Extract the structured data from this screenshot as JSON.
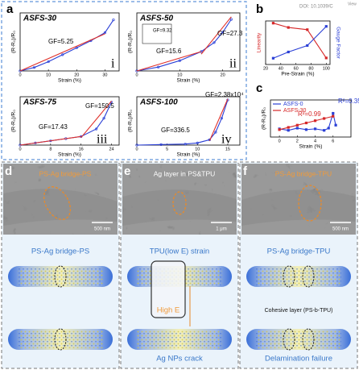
{
  "panel_labels": [
    "a",
    "b",
    "c"
  ],
  "watermark": [
    "DOI: 10.1039/C",
    "View"
  ],
  "chart_data": [
    {
      "type": "line",
      "title": "ASFS-30",
      "xlabel": "Strain (%)",
      "ylabel": "(R-R₀)/R₀",
      "xlim": [
        0,
        35
      ],
      "xticks": [
        0,
        10,
        20,
        30
      ],
      "ylim": [
        0,
        2.5
      ],
      "annotations": [
        "GF=5.25",
        "i"
      ],
      "series": [
        {
          "color": "#2a3fd6",
          "x": [
            0,
            5,
            10,
            15,
            20,
            25,
            30,
            33
          ],
          "values": [
            0,
            0.15,
            0.4,
            0.7,
            1.0,
            1.3,
            1.65,
            2.2
          ]
        },
        {
          "color": "#e0302a",
          "x": [
            0,
            30
          ],
          "values": [
            0,
            1.6
          ]
        }
      ]
    },
    {
      "type": "line",
      "title": "ASFS-50",
      "xlabel": "Strain (%)",
      "ylabel": "(R-R₀)/R₀",
      "xlim": [
        0,
        24
      ],
      "xticks": [
        0,
        10,
        20
      ],
      "ylim": [
        0,
        4.5
      ],
      "annotations": [
        "GF=9.32",
        "GF=15.6",
        "GF=27.3",
        "ii"
      ],
      "series": [
        {
          "color": "#2a3fd6",
          "x": [
            0,
            5,
            10,
            15,
            18,
            20,
            22
          ],
          "values": [
            0,
            0.3,
            0.8,
            1.5,
            2.2,
            3.0,
            4.0
          ]
        },
        {
          "color": "#e0302a",
          "x": [
            0,
            15
          ],
          "values": [
            0,
            1.5
          ]
        },
        {
          "color": "#e0302a",
          "x": [
            15,
            22
          ],
          "values": [
            1.3,
            4.2
          ]
        }
      ]
    },
    {
      "type": "line",
      "title": "ASFS-75",
      "xlabel": "Strain (%)",
      "ylabel": "(R-R₀)/R₀",
      "xlim": [
        0,
        26
      ],
      "xticks": [
        0,
        8,
        16,
        24
      ],
      "ylim": [
        0,
        4.5
      ],
      "annotations": [
        "GF=17.43",
        "GF=150.5",
        "iii"
      ],
      "series": [
        {
          "color": "#2a3fd6",
          "x": [
            0,
            4,
            8,
            12,
            16,
            20,
            22,
            24
          ],
          "values": [
            0,
            0.2,
            0.4,
            0.6,
            0.8,
            1.5,
            2.5,
            4.0
          ]
        },
        {
          "color": "#e0302a",
          "x": [
            0,
            16
          ],
          "values": [
            0,
            0.8
          ]
        },
        {
          "color": "#e0302a",
          "x": [
            16,
            24
          ],
          "values": [
            0.7,
            4.1
          ]
        }
      ]
    },
    {
      "type": "line",
      "title": "ASFS-100",
      "xlabel": "Strain (%)",
      "ylabel": "(R-R₀)/R₀",
      "xlim": [
        0,
        17
      ],
      "xticks": [
        0,
        5,
        10,
        15
      ],
      "ylim": [
        0,
        4.5
      ],
      "annotations": [
        "GF=336.5",
        "GF=2.38x10⁴",
        "iv"
      ],
      "series": [
        {
          "color": "#2a3fd6",
          "x": [
            0,
            4,
            8,
            10,
            12,
            13,
            14,
            15
          ],
          "values": [
            0,
            0.05,
            0.1,
            0.2,
            0.5,
            1.2,
            2.5,
            4.2
          ]
        },
        {
          "color": "#e0302a",
          "x": [
            12,
            15
          ],
          "values": [
            0.4,
            4.3
          ]
        }
      ]
    },
    {
      "type": "line",
      "xlabel": "Pre-Strain (%)",
      "ylabel": "Linearity",
      "y2label": "Gauge Factor",
      "xlim": [
        20,
        105
      ],
      "xticks": [
        20,
        40,
        60,
        80,
        100
      ],
      "ylim": [
        0.8,
        1.0
      ],
      "y2lim": [
        1,
        100000
      ],
      "y2log": true,
      "series": [
        {
          "color": "#d62728",
          "x": [
            30,
            50,
            75,
            100
          ],
          "values": [
            0.99,
            0.97,
            0.96,
            0.83
          ]
        },
        {
          "color": "#2a3fd6",
          "axis": "y2",
          "x": [
            30,
            50,
            75,
            100
          ],
          "values": [
            5.25,
            27.3,
            150.5,
            23800
          ]
        }
      ]
    },
    {
      "type": "line",
      "xlabel": "Strain (%)",
      "ylabel": "(R-R₀)/R₀",
      "xlim": [
        -1,
        8
      ],
      "xticks": [
        0,
        2,
        4,
        6
      ],
      "ylim": [
        -0.5,
        2
      ],
      "legend": "upper left",
      "annotations": [
        {
          "text": "R²=0.99",
          "color": "#d62728"
        },
        {
          "text": "R²=0.35",
          "color": "#2a3fd6"
        }
      ],
      "series": [
        {
          "name": "ASFS-0",
          "color": "#2a3fd6",
          "x": [
            0,
            1,
            2,
            3,
            4,
            5,
            5.5,
            6,
            6.3
          ],
          "values": [
            0.05,
            -0.05,
            0.1,
            0,
            0.05,
            -0.05,
            0.1,
            1.1,
            0.3
          ]
        },
        {
          "name": "ASFS-30",
          "color": "#d62728",
          "x": [
            0,
            1,
            2,
            3,
            4,
            5,
            6
          ],
          "values": [
            0,
            0.15,
            0.3,
            0.45,
            0.6,
            0.75,
            0.9
          ]
        }
      ]
    }
  ],
  "figures": {
    "panels": [
      {
        "label": "d",
        "title": "PS-Ag bridge-PS",
        "scale_bar": "500 nm",
        "captions": [
          "PS-Ag bridge-PS"
        ]
      },
      {
        "label": "e",
        "title": "Ag layer in PS&TPU",
        "scale_bar": "1 μm",
        "captions": [
          "TPU(low E) strain",
          "High E",
          "Ag NPs crack"
        ]
      },
      {
        "label": "f",
        "title": "PS-Ag bridge-TPU",
        "scale_bar": "500 nm",
        "captions": [
          "PS-Ag bridge-TPU",
          "Cohesive layer (PS-b-TPU)",
          "Delamination failure"
        ]
      }
    ]
  }
}
